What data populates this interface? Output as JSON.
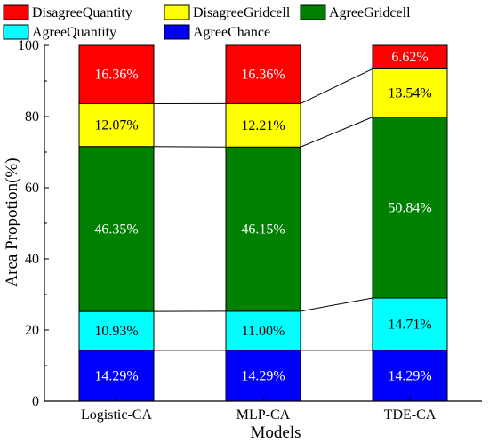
{
  "chart_data": {
    "type": "bar",
    "stacked": true,
    "xlabel": "Models",
    "ylabel": "Area Propotion(%)",
    "ylim": [
      0,
      100
    ],
    "yticks": [
      0,
      20,
      40,
      60,
      80,
      100
    ],
    "categories": [
      "Logistic-CA",
      "MLP-CA",
      "TDE-CA"
    ],
    "series": [
      {
        "name": "AgreeChance",
        "color": "#0000ff",
        "label_color": "#ffffff",
        "values": [
          14.29,
          14.29,
          14.29
        ],
        "labels": [
          "14.29%",
          "14.29%",
          "14.29%"
        ]
      },
      {
        "name": "AgreeQuantity",
        "color": "#00ffff",
        "label_color": "#000000",
        "values": [
          10.93,
          11.0,
          14.71
        ],
        "labels": [
          "10.93%",
          "11.00%",
          "14.71%"
        ]
      },
      {
        "name": "AgreeGridcell",
        "color": "#008000",
        "label_color": "#ffffff",
        "values": [
          46.35,
          46.15,
          50.84
        ],
        "labels": [
          "46.35%",
          "46.15%",
          "50.84%"
        ]
      },
      {
        "name": "DisagreeGridcell",
        "color": "#ffff00",
        "label_color": "#000000",
        "values": [
          12.07,
          12.21,
          13.54
        ],
        "labels": [
          "12.07%",
          "12.21%",
          "13.54%"
        ]
      },
      {
        "name": "DisagreeQuantity",
        "color": "#ff0000",
        "label_color": "#ffffff",
        "values": [
          16.36,
          16.36,
          6.62
        ],
        "labels": [
          "16.36%",
          "16.36%",
          "6.62%"
        ]
      }
    ],
    "legend_order": [
      "DisagreeQuantity",
      "DisagreeGridcell",
      "AgreeGridcell",
      "AgreeQuantity",
      "AgreeChance"
    ],
    "legend_position": "top",
    "connector_lines": true,
    "grid": false
  }
}
